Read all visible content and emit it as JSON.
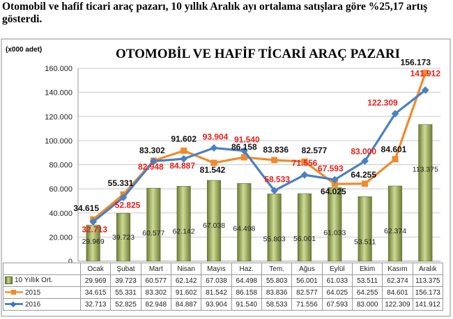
{
  "headline": "Otomobil ve hafif ticari araç pazarı, 10 yıllık Aralık ayı ortalama satışlara göre %25,17 artış gösterdi.",
  "colors": {
    "bar": "#9aab55",
    "series_2015": "#f08a2c",
    "series_2016": "#4a80c4",
    "labels_2016": "#e8201a",
    "plot_bg": "#ffffff"
  },
  "chart_data": {
    "type": "bar",
    "title": "OTOMOBİL  VE HAFİF TİCARİ ARAÇ PAZARI",
    "ylabel": "(x000 adet)",
    "ylim": [
      0,
      160000
    ],
    "yticks": [
      "0",
      "20.000",
      "40.000",
      "60.000",
      "80.000",
      "100.000",
      "120.000",
      "140.000",
      "160.000"
    ],
    "grid": true,
    "categories": [
      "Ocak",
      "Şubat",
      "Mart",
      "Nisan",
      "Mayıs",
      "Haz.",
      "Tem.",
      "Ağus",
      "Eylül",
      "Ekim",
      "Kasım",
      "Aralık"
    ],
    "series": [
      {
        "name": "10 Yıllık Ort.",
        "type": "bar",
        "values": [
          29969,
          39723,
          60577,
          62142,
          67038,
          64498,
          55803,
          56001,
          61033,
          53511,
          62374,
          113375
        ],
        "labels": [
          "29.969",
          "39.723",
          "60.577",
          "62.142",
          "67.038",
          "64.498",
          "55.803",
          "56.001",
          "61.033",
          "53.511",
          "62.374",
          "113.375"
        ]
      },
      {
        "name": "2015",
        "type": "line",
        "values": [
          34615,
          55331,
          83302,
          91602,
          81542,
          86158,
          83836,
          82577,
          64025,
          64255,
          84601,
          156173
        ],
        "labels": [
          "34.615",
          "55.331",
          "83.302",
          "91.602",
          "81.542",
          "86.158",
          "83.836",
          "82.577",
          "64.025",
          "64.255",
          "84.601",
          "156.173"
        ]
      },
      {
        "name": "2016",
        "type": "line",
        "values": [
          32713,
          52825,
          82948,
          84887,
          93904,
          91540,
          58533,
          71556,
          67593,
          83000,
          122309,
          141912
        ],
        "labels": [
          "32.713",
          "52.825",
          "82.948",
          "84.887",
          "93.904",
          "91.540",
          "58.533",
          "71.556",
          "67.593",
          "83.000",
          "122.309",
          "141.912"
        ]
      }
    ]
  }
}
